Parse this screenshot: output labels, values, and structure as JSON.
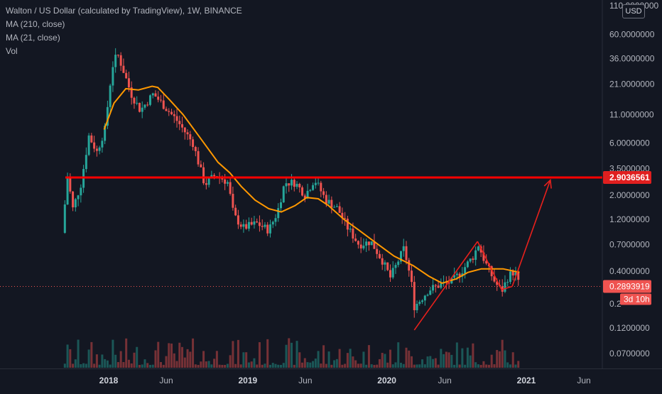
{
  "legend": {
    "title": "Walton / US Dollar (calculated by TradingView), 1W, BINANCE",
    "ma_long": "MA (210, close)",
    "ma_short": "MA (21, close)",
    "volume": "Vol"
  },
  "currency_button": "USD",
  "colors": {
    "background": "#131722",
    "up": "#26a69a",
    "down": "#ef5350",
    "ma21": "#ff9800",
    "resistance": "#ff0000",
    "annotation": "#e8201c",
    "axis_text": "#b2b5be"
  },
  "chart_data": {
    "type": "candlestick",
    "title": "Walton / US Dollar (calculated by TradingView), 1W, BINANCE",
    "y_scale": "log",
    "y_ticks": [
      "110.0000000",
      "60.0000000",
      "36.0000000",
      "21.0000000",
      "11.0000000",
      "6.0000000",
      "3.5000000",
      "2.0000000",
      "1.2000000",
      "0.7000000",
      "0.4000000",
      "0.2",
      "0.1200000",
      "0.0700000"
    ],
    "y_tick_values": [
      110,
      60,
      36,
      21,
      11,
      6,
      3.5,
      2,
      1.2,
      0.7,
      0.4,
      0.2,
      0.12,
      0.07
    ],
    "x_ticks": [
      "2018",
      "Jun",
      "2019",
      "Jun",
      "2020",
      "Jun",
      "2021",
      "Jun"
    ],
    "x_tick_dates": [
      "2018-01-01",
      "2018-06-01",
      "2019-01-01",
      "2019-06-01",
      "2020-01-01",
      "2020-06-01",
      "2021-01-01",
      "2021-06-01"
    ],
    "price_keypoints": [
      [
        "2017-09-01",
        0.9
      ],
      [
        "2017-09-15",
        3.0
      ],
      [
        "2017-09-29",
        1.5
      ],
      [
        "2017-10-20",
        2.5
      ],
      [
        "2017-11-10",
        7.0
      ],
      [
        "2017-12-01",
        5.0
      ],
      [
        "2017-12-22",
        8.0
      ],
      [
        "2018-01-10",
        30.0
      ],
      [
        "2018-01-24",
        40.0
      ],
      [
        "2018-02-10",
        27.0
      ],
      [
        "2018-03-01",
        17.0
      ],
      [
        "2018-03-25",
        12.0
      ],
      [
        "2018-04-28",
        17.0
      ],
      [
        "2018-05-20",
        14.0
      ],
      [
        "2018-07-01",
        9.5
      ],
      [
        "2018-08-10",
        6.0
      ],
      [
        "2018-09-10",
        2.5
      ],
      [
        "2018-10-10",
        3.1
      ],
      [
        "2018-11-10",
        2.6
      ],
      [
        "2018-11-25",
        1.3
      ],
      [
        "2018-12-20",
        1.0
      ],
      [
        "2019-01-25",
        1.1
      ],
      [
        "2019-02-25",
        0.95
      ],
      [
        "2019-03-20",
        1.4
      ],
      [
        "2019-04-08",
        2.6
      ],
      [
        "2019-05-05",
        2.6
      ],
      [
        "2019-06-01",
        2.0
      ],
      [
        "2019-06-25",
        2.8
      ],
      [
        "2019-07-25",
        1.8
      ],
      [
        "2019-08-25",
        1.5
      ],
      [
        "2019-09-20",
        1.0
      ],
      [
        "2019-10-20",
        0.7
      ],
      [
        "2019-11-20",
        0.75
      ],
      [
        "2019-12-20",
        0.5
      ],
      [
        "2020-01-10",
        0.35
      ],
      [
        "2020-01-25",
        0.45
      ],
      [
        "2020-02-15",
        0.65
      ],
      [
        "2020-03-05",
        0.32
      ],
      [
        "2020-03-13",
        0.19
      ],
      [
        "2020-03-25",
        0.21
      ],
      [
        "2020-04-20",
        0.27
      ],
      [
        "2020-05-20",
        0.3
      ],
      [
        "2020-06-20",
        0.32
      ],
      [
        "2020-07-20",
        0.42
      ],
      [
        "2020-08-15",
        0.55
      ],
      [
        "2020-08-28",
        0.7
      ],
      [
        "2020-09-15",
        0.48
      ],
      [
        "2020-10-10",
        0.32
      ],
      [
        "2020-10-28",
        0.26
      ],
      [
        "2020-11-15",
        0.36
      ],
      [
        "2020-12-01",
        0.4
      ],
      [
        "2020-12-14",
        0.29
      ]
    ],
    "ma21_keypoints": [
      [
        "2017-12-20",
        8.0
      ],
      [
        "2018-01-15",
        14.0
      ],
      [
        "2018-02-15",
        19.0
      ],
      [
        "2018-03-20",
        18.5
      ],
      [
        "2018-04-25",
        20.0
      ],
      [
        "2018-05-10",
        19.5
      ],
      [
        "2018-06-10",
        15.0
      ],
      [
        "2018-07-15",
        11.0
      ],
      [
        "2018-09-01",
        6.5
      ],
      [
        "2018-10-15",
        4.0
      ],
      [
        "2018-11-15",
        3.2
      ],
      [
        "2018-12-15",
        2.4
      ],
      [
        "2019-01-20",
        1.8
      ],
      [
        "2019-02-25",
        1.5
      ],
      [
        "2019-03-30",
        1.4
      ],
      [
        "2019-05-05",
        1.6
      ],
      [
        "2019-06-05",
        1.9
      ],
      [
        "2019-07-05",
        1.85
      ],
      [
        "2019-08-01",
        1.6
      ],
      [
        "2019-09-10",
        1.2
      ],
      [
        "2019-10-20",
        0.95
      ],
      [
        "2019-12-10",
        0.7
      ],
      [
        "2020-01-20",
        0.55
      ],
      [
        "2020-03-10",
        0.45
      ],
      [
        "2020-04-20",
        0.36
      ],
      [
        "2020-05-25",
        0.31
      ],
      [
        "2020-07-01",
        0.34
      ],
      [
        "2020-08-01",
        0.39
      ],
      [
        "2020-09-05",
        0.42
      ],
      [
        "2020-10-05",
        0.42
      ],
      [
        "2020-11-01",
        0.42
      ],
      [
        "2020-12-14",
        0.39
      ]
    ],
    "resistance_level": 2.9036561,
    "current_price": 0.2893919,
    "labels": {
      "resistance": "2.9036561",
      "current": "0.2893919",
      "countdown": "3d 10h"
    },
    "annotation_lines": [
      [
        [
          "2020-03-13",
          0.115
        ],
        [
          "2020-08-26",
          0.75
        ]
      ],
      [
        [
          "2020-08-26",
          0.75
        ],
        [
          "2020-10-28",
          0.27
        ]
      ],
      [
        [
          "2020-10-28",
          0.27
        ],
        [
          "2020-11-25",
          0.29
        ]
      ],
      [
        [
          "2020-11-25",
          0.29
        ],
        [
          "2021-03-05",
          2.75
        ]
      ]
    ],
    "annotation_arrowhead": [
      "2021-03-05",
      2.75
    ],
    "grid": false
  }
}
